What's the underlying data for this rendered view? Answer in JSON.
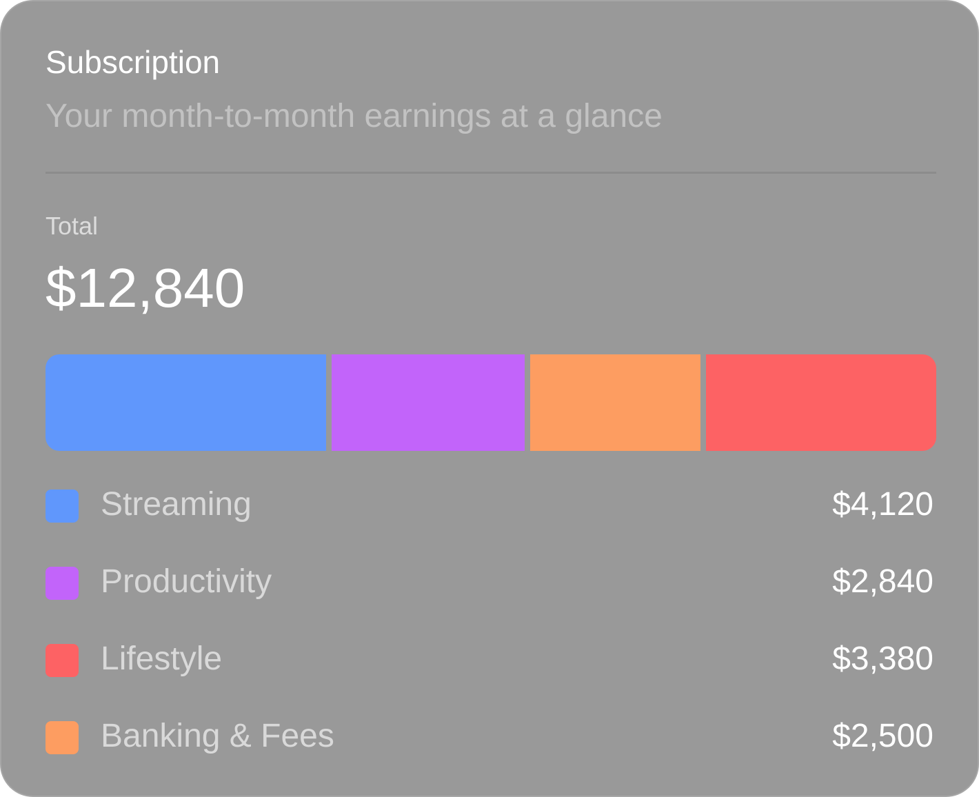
{
  "card": {
    "title": "Subscription",
    "subtitle": "Your month-to-month earnings at a glance",
    "total_label": "Total",
    "total_value": "$12,840"
  },
  "categories": [
    {
      "label": "Streaming",
      "value_text": "$4,120",
      "value": 4120,
      "color": "#6097fc"
    },
    {
      "label": "Productivity",
      "value_text": "$2,840",
      "value": 2840,
      "color": "#c264fa"
    },
    {
      "label": "Lifestyle",
      "value_text": "$3,380",
      "value": 3380,
      "color": "#fd6264"
    },
    {
      "label": "Banking & Fees",
      "value_text": "$2,500",
      "value": 2500,
      "color": "#fd9d61"
    }
  ],
  "bar_order": [
    0,
    1,
    3,
    2
  ]
}
